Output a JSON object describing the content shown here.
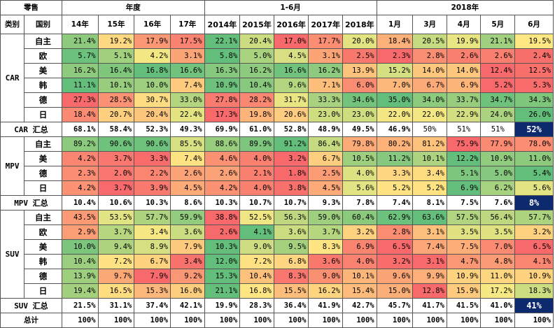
{
  "chart_data": {
    "type": "table",
    "corner_label": "零售",
    "header_groups": [
      "年度",
      "1-6月",
      "2018年"
    ],
    "col_header_left": [
      "类别",
      "国别"
    ],
    "columns": [
      "14年",
      "15年",
      "16年",
      "17年",
      "2014年",
      "2015年",
      "2016年",
      "2017年",
      "2018年",
      "1月",
      "3月",
      "4月",
      "5月",
      "6月"
    ],
    "sections": [
      {
        "category": "CAR",
        "rows": [
          {
            "country": "自主",
            "values": [
              "21.4%",
              "19.2%",
              "17.9%",
              "17.5%",
              "22.1%",
              "20.4%",
              "17.0%",
              "17.7%",
              "20.0%",
              "18.4%",
              "20.5%",
              "19.9%",
              "21.1%",
              "19.5%"
            ]
          },
          {
            "country": "欧",
            "values": [
              "5.7%",
              "5.1%",
              "4.2%",
              "3.1%",
              "5.8%",
              "5.0%",
              "4.5%",
              "3.1%",
              "2.5%",
              "2.3%",
              "2.8%",
              "2.6%",
              "2.6%",
              "2.4%"
            ]
          },
          {
            "country": "美",
            "values": [
              "16.2%",
              "16.4%",
              "16.8%",
              "16.6%",
              "16.3%",
              "16.2%",
              "16.6%",
              "16.2%",
              "13.9%",
              "15.2%",
              "14.0%",
              "14.0%",
              "12.4%",
              "12.5%"
            ]
          },
          {
            "country": "韩",
            "values": [
              "11.1%",
              "10.1%",
              "10.0%",
              "7.4%",
              "10.9%",
              "10.4%",
              "9.6%",
              "7.1%",
              "6.0%",
              "7.0%",
              "6.7%",
              "6.9%",
              "5.2%",
              "5.3%"
            ]
          },
          {
            "country": "德",
            "values": [
              "27.3%",
              "28.5%",
              "30.7%",
              "33.0%",
              "27.8%",
              "28.2%",
              "31.7%",
              "33.3%",
              "34.6%",
              "35.0%",
              "34.0%",
              "33.7%",
              "34.7%",
              "34.3%"
            ]
          },
          {
            "country": "日",
            "values": [
              "18.4%",
              "20.7%",
              "20.4%",
              "22.4%",
              "17.3%",
              "19.8%",
              "20.6%",
              "23.0%",
              "23.0%",
              "22.0%",
              "22.0%",
              "22.9%",
              "24.0%",
              "26.0%"
            ]
          }
        ],
        "subtotal": {
          "label": "CAR 汇总",
          "values": [
            "68.1%",
            "58.4%",
            "52.3%",
            "49.3%",
            "69.9%",
            "61.0%",
            "52.8%",
            "48.9%",
            "49.5%",
            "46.9%",
            "50%",
            "51%",
            "51%",
            "52%"
          ]
        }
      },
      {
        "category": "MPV",
        "rows": [
          {
            "country": "自主",
            "values": [
              "89.2%",
              "90.6%",
              "90.6%",
              "85.5%",
              "88.6%",
              "89.9%",
              "91.2%",
              "86.4%",
              "79.8%",
              "80.2%",
              "81.2%",
              "75.9%",
              "77.9%",
              "78.0%"
            ]
          },
          {
            "country": "美",
            "values": [
              "4.2%",
              "3.7%",
              "3.3%",
              "7.4%",
              "4.6%",
              "4.0%",
              "3.2%",
              "6.7%",
              "10.5%",
              "11.2%",
              "10.1%",
              "12.2%",
              "10.9%",
              "11.0%"
            ]
          },
          {
            "country": "德",
            "values": [
              "2.3%",
              "2.0%",
              "2.2%",
              "2.6%",
              "2.6%",
              "2.1%",
              "1.8%",
              "2.5%",
              "4.0%",
              "3.3%",
              "3.4%",
              "5.1%",
              "5.0%",
              "5.4%"
            ]
          },
          {
            "country": "日",
            "values": [
              "4.2%",
              "3.7%",
              "3.9%",
              "4.5%",
              "4.2%",
              "4.0%",
              "3.8%",
              "4.5%",
              "5.6%",
              "5.2%",
              "5.2%",
              "6.9%",
              "6.2%",
              "5.6%"
            ]
          }
        ],
        "subtotal": {
          "label": "MPV 汇总",
          "values": [
            "10.4%",
            "10.6%",
            "10.3%",
            "8.6%",
            "10.3%",
            "10.7%",
            "10.7%",
            "9.3%",
            "7.8%",
            "7.4%",
            "8.1%",
            "7.5%",
            "7.6%",
            "8%"
          ]
        }
      },
      {
        "category": "SUV",
        "rows": [
          {
            "country": "自主",
            "values": [
              "43.5%",
              "53.5%",
              "57.7%",
              "59.9%",
              "38.8%",
              "52.5%",
              "56.3%",
              "59.0%",
              "60.4%",
              "62.9%",
              "63.6%",
              "57.5%",
              "56.4%",
              "57.7%"
            ]
          },
          {
            "country": "欧",
            "values": [
              "2.9%",
              "3.7%",
              "3.4%",
              "3.6%",
              "2.6%",
              "4.1%",
              "3.6%",
              "3.7%",
              "3.2%",
              "2.8%",
              "3.1%",
              "3.5%",
              "3.5%",
              "3.2%"
            ]
          },
          {
            "country": "美",
            "values": [
              "10.0%",
              "9.4%",
              "8.9%",
              "7.9%",
              "10.3%",
              "9.0%",
              "9.5%",
              "8.3%",
              "6.9%",
              "6.5%",
              "7.4%",
              "7.5%",
              "7.0%",
              "6.5%"
            ]
          },
          {
            "country": "韩",
            "values": [
              "10.4%",
              "7.2%",
              "6.7%",
              "3.4%",
              "12.0%",
              "7.2%",
              "6.8%",
              "3.6%",
              "4.0%",
              "3.2%",
              "3.1%",
              "4.7%",
              "4.8%",
              "4.1%"
            ]
          },
          {
            "country": "德",
            "values": [
              "13.9%",
              "9.7%",
              "7.9%",
              "9.2%",
              "15.3%",
              "10.4%",
              "8.3%",
              "9.0%",
              "10.1%",
              "9.6%",
              "9.9%",
              "10.9%",
              "11.0%",
              "10.9%"
            ]
          },
          {
            "country": "日",
            "values": [
              "19.4%",
              "16.5%",
              "15.3%",
              "16.0%",
              "21.1%",
              "16.8%",
              "15.5%",
              "16.2%",
              "15.4%",
              "15.0%",
              "12.8%",
              "15.9%",
              "17.2%",
              "18.3%"
            ]
          }
        ],
        "subtotal": {
          "label": "SUV 汇总",
          "values": [
            "21.5%",
            "31.1%",
            "37.4%",
            "42.1%",
            "19.9%",
            "28.3%",
            "36.4%",
            "41.9%",
            "42.7%",
            "45.7%",
            "41.7%",
            "41.5%",
            "41.0%",
            "41%"
          ]
        }
      }
    ],
    "total": {
      "label": "总计",
      "values": [
        "100%",
        "100%",
        "100%",
        "100%",
        "100%",
        "100%",
        "100%",
        "100%",
        "100%",
        "100%",
        "100%",
        "100%",
        "100%",
        "100%"
      ]
    },
    "color_scale": {
      "low": "#f8696b",
      "mid": "#ffeb84",
      "high": "#63be7b"
    }
  }
}
